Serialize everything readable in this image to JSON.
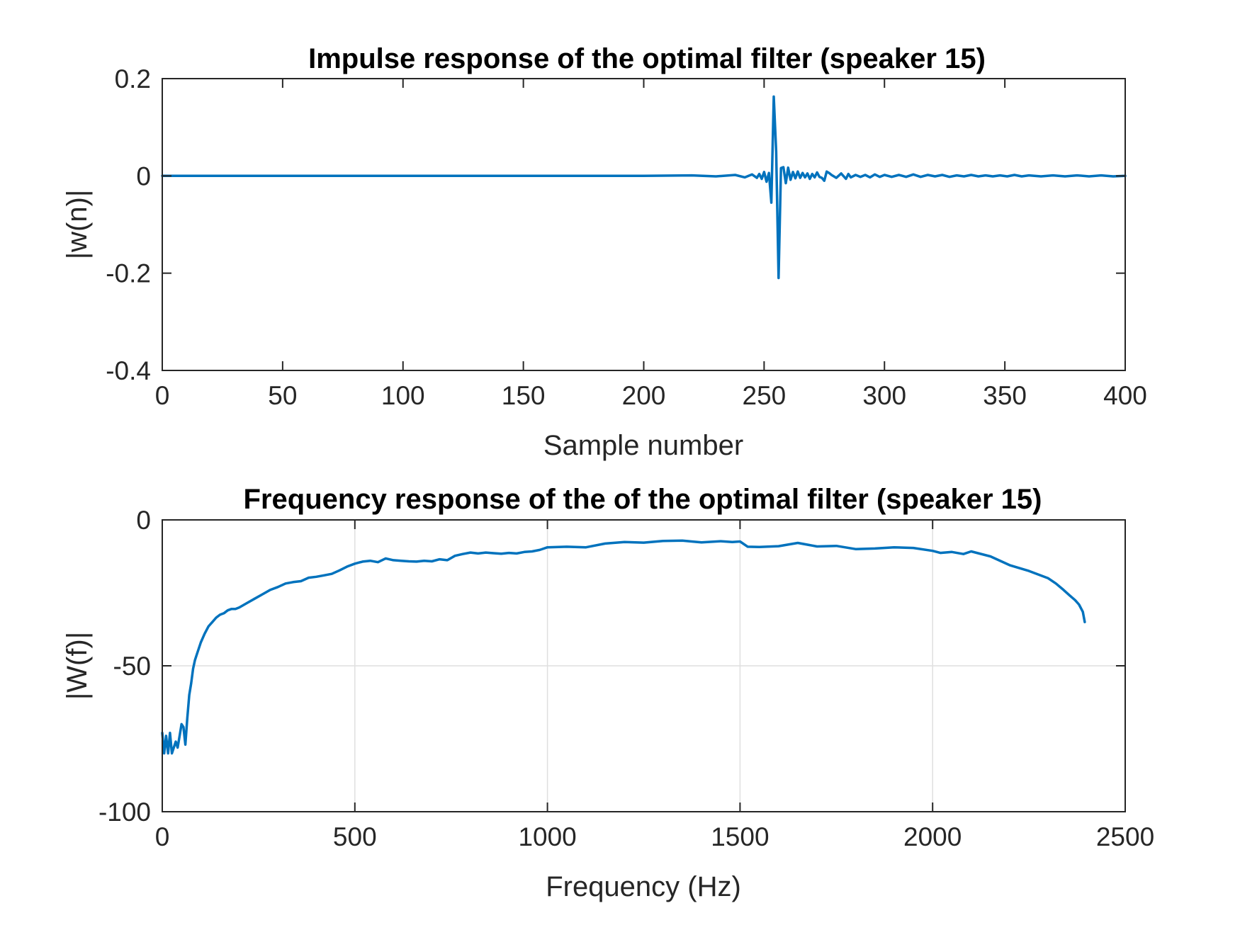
{
  "colors": {
    "series": "#0072BD",
    "axes": "#262626",
    "grid": "#dfdfdf",
    "background": "#ffffff"
  },
  "chart_data": [
    {
      "type": "line",
      "title": "Impulse response of the optimal filter (speaker 15)",
      "xlabel": "Sample number",
      "ylabel": "|w(n)|",
      "xlim": [
        0,
        400
      ],
      "ylim": [
        -0.4,
        0.2
      ],
      "xticks": [
        0,
        50,
        100,
        150,
        200,
        250,
        300,
        350,
        400
      ],
      "xtick_labels": [
        "0",
        "50",
        "100",
        "150",
        "200",
        "250",
        "300",
        "350",
        "400"
      ],
      "yticks": [
        -0.4,
        -0.2,
        0,
        0.2
      ],
      "ytick_labels": [
        "-0.4",
        "-0.2",
        "0",
        "0.2"
      ],
      "grid": false,
      "series": [
        {
          "color": "#0072BD",
          "x": [
            0,
            100,
            200,
            220,
            230,
            238,
            242,
            245,
            247,
            248,
            249,
            250,
            251,
            252,
            253,
            254,
            255,
            256,
            257,
            258,
            259,
            260,
            261,
            262,
            263,
            264,
            265,
            266,
            267,
            268,
            269,
            270,
            271,
            272,
            273,
            274,
            275,
            276,
            277,
            278,
            280,
            282,
            284,
            285,
            286,
            288,
            290,
            292,
            294,
            296,
            298,
            300,
            303,
            306,
            309,
            312,
            315,
            318,
            321,
            324,
            327,
            330,
            333,
            336,
            339,
            342,
            345,
            348,
            351,
            354,
            357,
            360,
            365,
            370,
            375,
            380,
            385,
            390,
            395,
            400
          ],
          "y": [
            0,
            0,
            0,
            0.001,
            -0.001,
            0.002,
            -0.003,
            0.003,
            -0.004,
            0.004,
            -0.006,
            0.008,
            -0.012,
            0.006,
            -0.055,
            0.163,
            0.05,
            -0.21,
            0.016,
            0.018,
            -0.015,
            0.017,
            -0.008,
            0.008,
            -0.005,
            0.009,
            -0.004,
            0.006,
            -0.003,
            0.005,
            -0.006,
            0.004,
            -0.003,
            0.007,
            -0.002,
            -0.004,
            -0.01,
            0.009,
            0.006,
            0.002,
            -0.004,
            0.005,
            -0.006,
            0.004,
            -0.003,
            0.002,
            -0.002,
            0.002,
            -0.003,
            0.003,
            -0.002,
            0.002,
            -0.002,
            0.002,
            -0.002,
            0.003,
            -0.002,
            0.002,
            -0.001,
            0.002,
            -0.002,
            0.001,
            -0.001,
            0.002,
            -0.001,
            0.001,
            -0.001,
            0.001,
            -0.001,
            0.002,
            -0.001,
            0.001,
            -0.001,
            0.001,
            -0.001,
            0.001,
            -0.001,
            0.001,
            -0.001,
            0
          ]
        }
      ]
    },
    {
      "type": "line",
      "title": "Frequency response of the of the optimal filter (speaker 15)",
      "xlabel": "Frequency (Hz)",
      "ylabel": "|W(f)|",
      "xlim": [
        0,
        2500
      ],
      "ylim": [
        -100,
        0
      ],
      "xticks": [
        0,
        500,
        1000,
        1500,
        2000,
        2500
      ],
      "xtick_labels": [
        "0",
        "500",
        "1000",
        "1500",
        "2000",
        "2500"
      ],
      "yticks": [
        -100,
        -50,
        0
      ],
      "ytick_labels": [
        "-100",
        "-50",
        "0"
      ],
      "grid": true,
      "series": [
        {
          "color": "#0072BD",
          "x": [
            0,
            5,
            10,
            15,
            20,
            25,
            30,
            35,
            40,
            45,
            50,
            55,
            60,
            65,
            70,
            75,
            80,
            85,
            90,
            100,
            110,
            120,
            130,
            140,
            150,
            160,
            170,
            180,
            190,
            200,
            220,
            240,
            260,
            280,
            300,
            320,
            340,
            360,
            380,
            400,
            420,
            440,
            460,
            480,
            500,
            520,
            540,
            560,
            580,
            600,
            620,
            640,
            660,
            680,
            700,
            720,
            740,
            760,
            780,
            800,
            820,
            840,
            860,
            880,
            900,
            920,
            940,
            960,
            980,
            1000,
            1050,
            1100,
            1150,
            1200,
            1250,
            1300,
            1350,
            1400,
            1450,
            1480,
            1500,
            1520,
            1550,
            1600,
            1650,
            1700,
            1750,
            1800,
            1850,
            1900,
            1950,
            2000,
            2020,
            2050,
            2080,
            2100,
            2150,
            2200,
            2250,
            2300,
            2320,
            2340,
            2355,
            2370,
            2380,
            2390,
            2395
          ],
          "y": [
            -73,
            -80,
            -74,
            -80,
            -73,
            -80,
            -78,
            -76,
            -78,
            -74,
            -70,
            -71,
            -77,
            -68,
            -60,
            -56,
            -51,
            -48,
            -46,
            -42,
            -39,
            -36.5,
            -35,
            -33.5,
            -32.5,
            -32,
            -31,
            -30.5,
            -30.5,
            -30,
            -28.5,
            -27,
            -25.5,
            -24,
            -23,
            -21.8,
            -21.3,
            -21,
            -19.8,
            -19.5,
            -19,
            -18.5,
            -17.3,
            -16,
            -15,
            -14.3,
            -14,
            -14.5,
            -13.2,
            -13.8,
            -14,
            -14.2,
            -14.3,
            -14,
            -14.2,
            -13.5,
            -13.8,
            -12.3,
            -11.7,
            -11.2,
            -11.5,
            -11.2,
            -11.4,
            -11.6,
            -11.3,
            -11.5,
            -11,
            -10.8,
            -10.3,
            -9.4,
            -9.2,
            -9.4,
            -8.1,
            -7.6,
            -7.8,
            -7.2,
            -7.1,
            -7.7,
            -7.3,
            -7.6,
            -7.4,
            -9.2,
            -9.3,
            -9.0,
            -7.9,
            -9.1,
            -8.9,
            -10,
            -9.8,
            -9.4,
            -9.6,
            -10.6,
            -11.3,
            -11,
            -11.7,
            -10.8,
            -12.5,
            -15.5,
            -17.5,
            -20,
            -21.8,
            -24,
            -25.8,
            -27.5,
            -29,
            -31.5,
            -35
          ]
        }
      ]
    }
  ]
}
